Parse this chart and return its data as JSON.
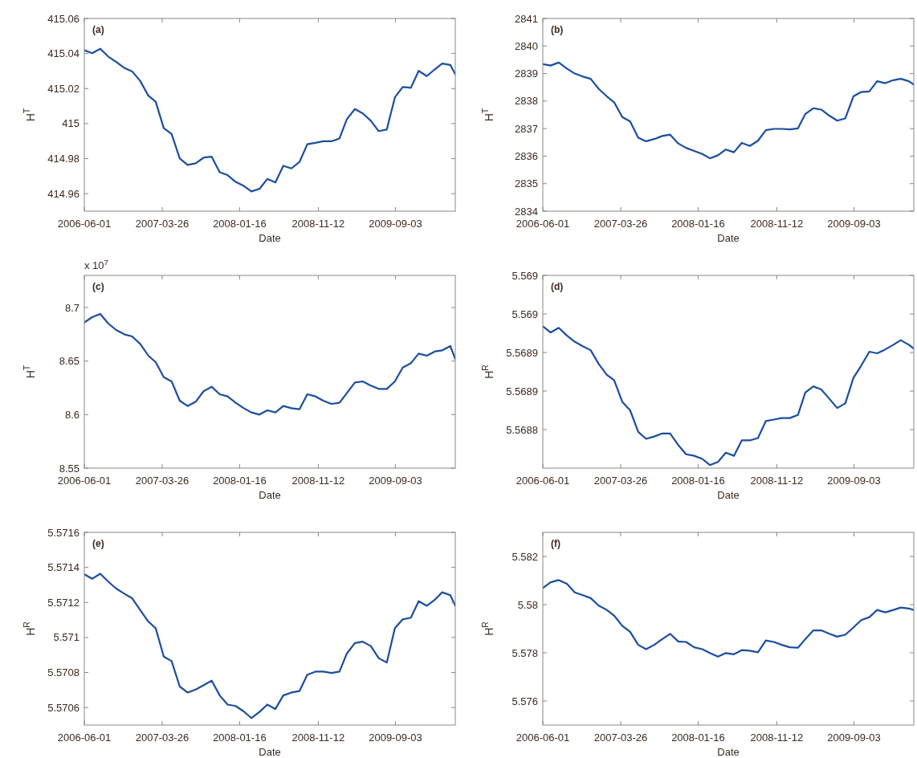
{
  "chart_data": [
    {
      "type": "line",
      "title": "(a)",
      "xlabel": "Date",
      "ylabel": "H$^{T}$",
      "xlim": [
        "2006-06-01",
        "2010-04-20"
      ],
      "xticks": [
        "2006-06-01",
        "2007-03-26",
        "2008-01-16",
        "2008-11-12",
        "2009-09-03"
      ],
      "ylim": [
        414.95,
        415.06
      ],
      "yticks": [
        414.96,
        414.98,
        415,
        415.02,
        415.04,
        415.06
      ],
      "grid": false,
      "x": [
        "2006-06-01",
        "2006-07-01",
        "2006-08-01",
        "2006-09-01",
        "2006-10-01",
        "2006-11-01",
        "2006-12-01",
        "2007-01-01",
        "2007-02-01",
        "2007-03-01",
        "2007-04-01",
        "2007-05-01",
        "2007-06-01",
        "2007-07-01",
        "2007-08-01",
        "2007-09-01",
        "2007-10-01",
        "2007-11-01",
        "2007-12-01",
        "2008-01-01",
        "2008-02-01",
        "2008-03-01",
        "2008-04-01",
        "2008-05-01",
        "2008-06-01",
        "2008-07-01",
        "2008-08-01",
        "2008-09-01",
        "2008-10-01",
        "2008-11-01",
        "2008-12-01",
        "2009-01-01",
        "2009-02-01",
        "2009-03-01",
        "2009-04-01",
        "2009-05-01",
        "2009-06-01",
        "2009-07-01",
        "2009-08-01",
        "2009-09-01",
        "2009-10-01",
        "2009-11-01",
        "2009-12-01",
        "2010-01-01",
        "2010-02-01",
        "2010-03-01",
        "2010-04-01",
        "2010-04-20"
      ],
      "series": [
        {
          "color": "#1a4ea0",
          "values": [
            415.0419,
            415.0402,
            415.0427,
            415.0382,
            415.0352,
            415.0318,
            415.0298,
            415.0243,
            415.0159,
            415.0125,
            414.9974,
            414.9941,
            414.9801,
            414.9764,
            414.9773,
            414.9806,
            414.9811,
            414.9722,
            414.9706,
            414.9667,
            414.9644,
            414.9613,
            414.9627,
            414.9684,
            414.9664,
            414.9759,
            414.9744,
            414.9781,
            414.9882,
            414.989,
            414.9899,
            414.9899,
            414.9915,
            415.0024,
            415.0083,
            415.0058,
            415.0016,
            414.9957,
            414.9966,
            415.015,
            415.0209,
            415.0204,
            415.0301,
            415.0271,
            415.031,
            415.0343,
            415.0335,
            415.0281
          ]
        }
      ]
    },
    {
      "type": "line",
      "title": "(b)",
      "xlabel": "Date",
      "ylabel": "H$^{T}$",
      "xlim": [
        "2006-06-01",
        "2010-04-20"
      ],
      "xticks": [
        "2006-06-01",
        "2007-03-26",
        "2008-01-16",
        "2008-11-12",
        "2009-09-03"
      ],
      "ylim": [
        2834,
        2841
      ],
      "yticks": [
        2834,
        2835,
        2836,
        2837,
        2838,
        2839,
        2840,
        2841
      ],
      "grid": false,
      "x": [
        "2006-06-01",
        "2006-07-01",
        "2006-08-01",
        "2006-09-01",
        "2006-10-01",
        "2006-11-01",
        "2006-12-01",
        "2007-01-01",
        "2007-02-01",
        "2007-03-01",
        "2007-04-01",
        "2007-05-01",
        "2007-06-01",
        "2007-07-01",
        "2007-08-01",
        "2007-09-01",
        "2007-10-01",
        "2007-11-01",
        "2007-12-01",
        "2008-01-01",
        "2008-02-01",
        "2008-03-01",
        "2008-04-01",
        "2008-05-01",
        "2008-06-01",
        "2008-07-01",
        "2008-08-01",
        "2008-09-01",
        "2008-10-01",
        "2008-11-01",
        "2008-12-01",
        "2009-01-01",
        "2009-02-01",
        "2009-03-01",
        "2009-04-01",
        "2009-05-01",
        "2009-06-01",
        "2009-07-01",
        "2009-08-01",
        "2009-09-01",
        "2009-10-01",
        "2009-11-01",
        "2009-12-01",
        "2010-01-01",
        "2010-02-01",
        "2010-03-01",
        "2010-04-01",
        "2010-04-20"
      ],
      "series": [
        {
          "color": "#1a4ea0",
          "values": [
            2839.34,
            2839.29,
            2839.4,
            2839.18,
            2839.0,
            2838.89,
            2838.81,
            2838.44,
            2838.17,
            2837.95,
            2837.42,
            2837.26,
            2836.67,
            2836.54,
            2836.62,
            2836.73,
            2836.78,
            2836.46,
            2836.3,
            2836.19,
            2836.08,
            2835.92,
            2836.03,
            2836.24,
            2836.14,
            2836.48,
            2836.37,
            2836.56,
            2836.94,
            2836.99,
            2836.99,
            2836.97,
            2837.01,
            2837.53,
            2837.74,
            2837.69,
            2837.47,
            2837.29,
            2837.37,
            2838.17,
            2838.33,
            2838.35,
            2838.72,
            2838.65,
            2838.76,
            2838.81,
            2838.72,
            2838.6
          ]
        }
      ]
    },
    {
      "type": "line",
      "title": "(c)",
      "xlabel": "Date",
      "ylabel": "H$^{T}$",
      "annotations": [
        "x 10$^{7}$"
      ],
      "xlim": [
        "2006-06-01",
        "2010-04-20"
      ],
      "xticks": [
        "2006-06-01",
        "2007-03-26",
        "2008-01-16",
        "2008-11-12",
        "2009-09-03"
      ],
      "ylim": [
        8.55,
        8.73
      ],
      "yticks": [
        8.55,
        8.6,
        8.65,
        8.7
      ],
      "grid": false,
      "x": [
        "2006-06-01",
        "2006-07-01",
        "2006-08-01",
        "2006-09-01",
        "2006-10-01",
        "2006-11-01",
        "2006-12-01",
        "2007-01-01",
        "2007-02-01",
        "2007-03-01",
        "2007-04-01",
        "2007-05-01",
        "2007-06-01",
        "2007-07-01",
        "2007-08-01",
        "2007-09-01",
        "2007-10-01",
        "2007-11-01",
        "2007-12-01",
        "2008-01-01",
        "2008-02-01",
        "2008-03-01",
        "2008-04-01",
        "2008-05-01",
        "2008-06-01",
        "2008-07-01",
        "2008-08-01",
        "2008-09-01",
        "2008-10-01",
        "2008-11-01",
        "2008-12-01",
        "2009-01-01",
        "2009-02-01",
        "2009-03-01",
        "2009-04-01",
        "2009-05-01",
        "2009-06-01",
        "2009-07-01",
        "2009-08-01",
        "2009-09-01",
        "2009-10-01",
        "2009-11-01",
        "2009-12-01",
        "2010-01-01",
        "2010-02-01",
        "2010-03-01",
        "2010-04-01",
        "2010-04-20"
      ],
      "series": [
        {
          "color": "#1a4ea0",
          "values": [
            8.686,
            8.691,
            8.694,
            8.685,
            8.679,
            8.675,
            8.673,
            8.666,
            8.655,
            8.649,
            8.635,
            8.631,
            8.613,
            8.608,
            8.612,
            8.622,
            8.626,
            8.619,
            8.617,
            8.611,
            8.606,
            8.602,
            8.6,
            8.604,
            8.602,
            8.608,
            8.606,
            8.605,
            8.619,
            8.617,
            8.613,
            8.61,
            8.611,
            8.62,
            8.63,
            8.631,
            8.627,
            8.624,
            8.624,
            8.631,
            8.644,
            8.648,
            8.657,
            8.655,
            8.659,
            8.66,
            8.664,
            8.652
          ]
        }
      ]
    },
    {
      "type": "line",
      "title": "(d)",
      "xlabel": "Date",
      "ylabel": "H$^{R}$",
      "xlim": [
        "2006-06-01",
        "2010-04-20"
      ],
      "xticks": [
        "2006-06-01",
        "2007-03-26",
        "2008-01-16",
        "2008-11-12",
        "2009-09-03"
      ],
      "ylim": [
        5.56875,
        5.569
      ],
      "yticks": [
        {
          "value": 5.5688,
          "label": "5.5688"
        },
        {
          "value": 5.56885,
          "label": "5.5689"
        },
        {
          "value": 5.5689,
          "label": "5.5689"
        },
        {
          "value": 5.56895,
          "label": "5.569"
        },
        {
          "value": 5.569,
          "label": "5.569"
        }
      ],
      "grid": false,
      "x": [
        "2006-06-01",
        "2006-07-01",
        "2006-08-01",
        "2006-09-01",
        "2006-10-01",
        "2006-11-01",
        "2006-12-01",
        "2007-01-01",
        "2007-02-01",
        "2007-03-01",
        "2007-04-01",
        "2007-05-01",
        "2007-06-01",
        "2007-07-01",
        "2007-08-01",
        "2007-09-01",
        "2007-10-01",
        "2007-11-01",
        "2007-12-01",
        "2008-01-01",
        "2008-02-01",
        "2008-03-01",
        "2008-04-01",
        "2008-05-01",
        "2008-06-01",
        "2008-07-01",
        "2008-08-01",
        "2008-09-01",
        "2008-10-01",
        "2008-11-01",
        "2008-12-01",
        "2009-01-01",
        "2009-02-01",
        "2009-03-01",
        "2009-04-01",
        "2009-05-01",
        "2009-06-01",
        "2009-07-01",
        "2009-08-01",
        "2009-09-01",
        "2009-10-01",
        "2009-11-01",
        "2009-12-01",
        "2010-01-01",
        "2010-02-01",
        "2010-03-01",
        "2010-04-01",
        "2010-04-20"
      ],
      "series": [
        {
          "color": "#1a4ea0",
          "values": [
            5.568934,
            5.568926,
            5.568932,
            5.568922,
            5.568914,
            5.568908,
            5.568903,
            5.568885,
            5.568871,
            5.568864,
            5.568836,
            5.568825,
            5.568797,
            5.568788,
            5.568791,
            5.568795,
            5.568795,
            5.56878,
            5.568768,
            5.568766,
            5.568762,
            5.568754,
            5.568758,
            5.56877,
            5.568766,
            5.568786,
            5.568786,
            5.568789,
            5.568811,
            5.568813,
            5.568815,
            5.568815,
            5.568819,
            5.568848,
            5.568856,
            5.568852,
            5.56884,
            5.568828,
            5.568834,
            5.568867,
            5.568883,
            5.568901,
            5.568899,
            5.568904,
            5.56891,
            5.568916,
            5.56891,
            5.568905
          ]
        }
      ]
    },
    {
      "type": "line",
      "title": "(e)",
      "xlabel": "Date",
      "ylabel": "H$^{R}$",
      "xlim": [
        "2006-06-01",
        "2010-04-20"
      ],
      "xticks": [
        "2006-06-01",
        "2007-03-26",
        "2008-01-16",
        "2008-11-12",
        "2009-09-03"
      ],
      "ylim": [
        5.5705,
        5.5716
      ],
      "yticks": [
        5.5706,
        5.5708,
        5.571,
        5.5712,
        5.5714,
        5.5716
      ],
      "grid": false,
      "x": [
        "2006-06-01",
        "2006-07-01",
        "2006-08-01",
        "2006-09-01",
        "2006-10-01",
        "2006-11-01",
        "2006-12-01",
        "2007-01-01",
        "2007-02-01",
        "2007-03-01",
        "2007-04-01",
        "2007-05-01",
        "2007-06-01",
        "2007-07-01",
        "2007-08-01",
        "2007-09-01",
        "2007-10-01",
        "2007-11-01",
        "2007-12-01",
        "2008-01-01",
        "2008-02-01",
        "2008-03-01",
        "2008-04-01",
        "2008-05-01",
        "2008-06-01",
        "2008-07-01",
        "2008-08-01",
        "2008-09-01",
        "2008-10-01",
        "2008-11-01",
        "2008-12-01",
        "2009-01-01",
        "2009-02-01",
        "2009-03-01",
        "2009-04-01",
        "2009-05-01",
        "2009-06-01",
        "2009-07-01",
        "2009-08-01",
        "2009-09-01",
        "2009-10-01",
        "2009-11-01",
        "2009-12-01",
        "2010-01-01",
        "2010-02-01",
        "2010-03-01",
        "2010-04-01",
        "2010-04-20"
      ],
      "series": [
        {
          "color": "#1a4ea0",
          "values": [
            5.571361,
            5.571335,
            5.571364,
            5.571318,
            5.571279,
            5.57125,
            5.571224,
            5.571156,
            5.571091,
            5.571053,
            5.570891,
            5.570865,
            5.57072,
            5.570686,
            5.570703,
            5.570728,
            5.570754,
            5.570669,
            5.570617,
            5.570609,
            5.570578,
            5.57054,
            5.570575,
            5.570617,
            5.570592,
            5.570669,
            5.570686,
            5.570694,
            5.570788,
            5.570805,
            5.570805,
            5.570797,
            5.570805,
            5.570908,
            5.570968,
            5.570976,
            5.570951,
            5.570882,
            5.570857,
            5.571053,
            5.571104,
            5.571113,
            5.571207,
            5.571181,
            5.571216,
            5.571258,
            5.571241,
            5.571181
          ]
        }
      ]
    },
    {
      "type": "line",
      "title": "(f)",
      "xlabel": "Date",
      "ylabel": "H$^{R}$",
      "xlim": [
        "2006-06-01",
        "2010-04-20"
      ],
      "xticks": [
        "2006-06-01",
        "2007-03-26",
        "2008-01-16",
        "2008-11-12",
        "2009-09-03"
      ],
      "ylim": [
        5.575,
        5.583
      ],
      "yticks": [
        5.576,
        5.578,
        5.58,
        5.582
      ],
      "grid": false,
      "x": [
        "2006-06-01",
        "2006-07-01",
        "2006-08-01",
        "2006-09-01",
        "2006-10-01",
        "2006-11-01",
        "2006-12-01",
        "2007-01-01",
        "2007-02-01",
        "2007-03-01",
        "2007-04-01",
        "2007-05-01",
        "2007-06-01",
        "2007-07-01",
        "2007-08-01",
        "2007-09-01",
        "2007-10-01",
        "2007-11-01",
        "2007-12-01",
        "2008-01-01",
        "2008-02-01",
        "2008-03-01",
        "2008-04-01",
        "2008-05-01",
        "2008-06-01",
        "2008-07-01",
        "2008-08-01",
        "2008-09-01",
        "2008-10-01",
        "2008-11-01",
        "2008-12-01",
        "2009-01-01",
        "2009-02-01",
        "2009-03-01",
        "2009-04-01",
        "2009-05-01",
        "2009-06-01",
        "2009-07-01",
        "2009-08-01",
        "2009-09-01",
        "2009-10-01",
        "2009-11-01",
        "2009-12-01",
        "2010-01-01",
        "2010-02-01",
        "2010-03-01",
        "2010-04-01",
        "2010-04-20"
      ],
      "series": [
        {
          "color": "#1a4ea0",
          "values": [
            5.58069,
            5.58093,
            5.58102,
            5.58087,
            5.58051,
            5.58039,
            5.58027,
            5.57996,
            5.57978,
            5.57954,
            5.57912,
            5.57887,
            5.57833,
            5.57815,
            5.57833,
            5.57857,
            5.57879,
            5.57847,
            5.57845,
            5.57823,
            5.57815,
            5.57799,
            5.57784,
            5.57799,
            5.57794,
            5.57811,
            5.57809,
            5.57802,
            5.57851,
            5.57845,
            5.57833,
            5.57823,
            5.57821,
            5.57857,
            5.57893,
            5.57893,
            5.57879,
            5.57867,
            5.57875,
            5.57905,
            5.57936,
            5.57948,
            5.57978,
            5.57968,
            5.57978,
            5.57988,
            5.57984,
            5.57978
          ]
        }
      ]
    }
  ]
}
